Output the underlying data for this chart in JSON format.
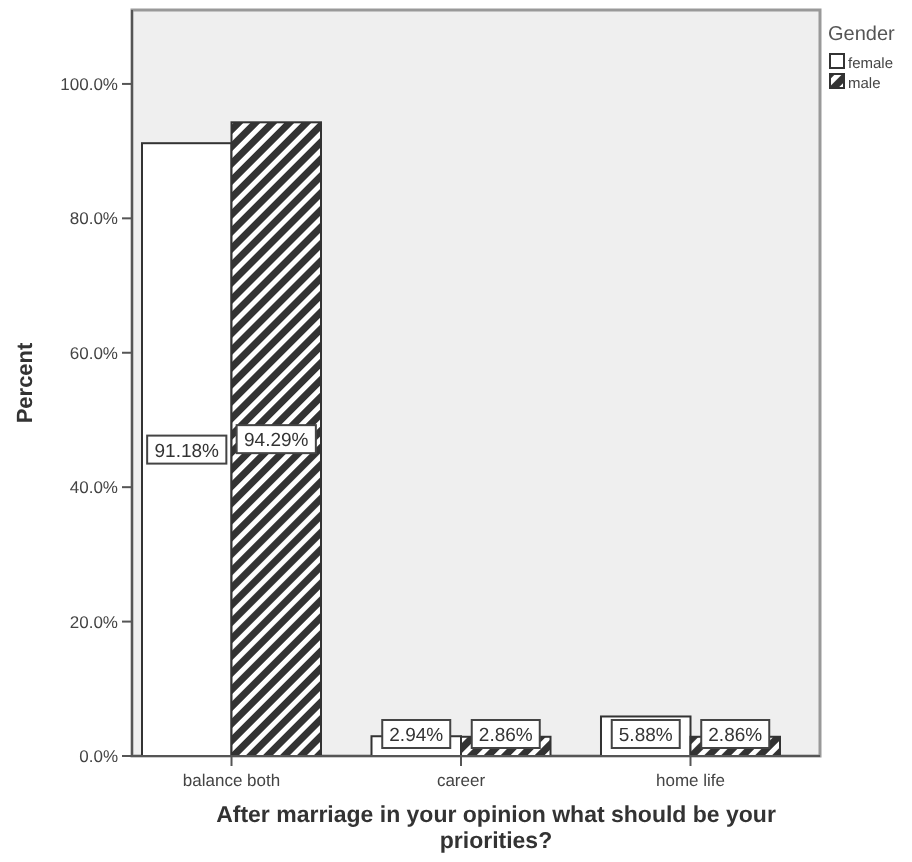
{
  "chart_data": {
    "type": "bar",
    "xlabel": "After marriage in your opinion what should be your priorities?",
    "ylabel": "Percent",
    "legend_title": "Gender",
    "categories": [
      "balance both",
      "career",
      "home life"
    ],
    "series": [
      {
        "name": "female",
        "color": "#ffffff",
        "values": [
          91.18,
          2.94,
          5.88
        ],
        "value_labels": [
          "91.18%",
          "2.94%",
          "5.88%"
        ]
      },
      {
        "name": "male",
        "color": "#333333",
        "values": [
          94.29,
          2.86,
          2.86
        ],
        "value_labels": [
          "94.29%",
          "2.86%",
          "2.86%"
        ]
      }
    ],
    "ylim": [
      0,
      111
    ],
    "yticks": [
      {
        "value": 0,
        "label": "0.0%"
      },
      {
        "value": 20,
        "label": "20.0%"
      },
      {
        "value": 40,
        "label": "40.0%"
      },
      {
        "value": 60,
        "label": "60.0%"
      },
      {
        "value": 80,
        "label": "80.0%"
      },
      {
        "value": 100,
        "label": "100.0%"
      }
    ],
    "grid": false,
    "legend": "top right"
  }
}
